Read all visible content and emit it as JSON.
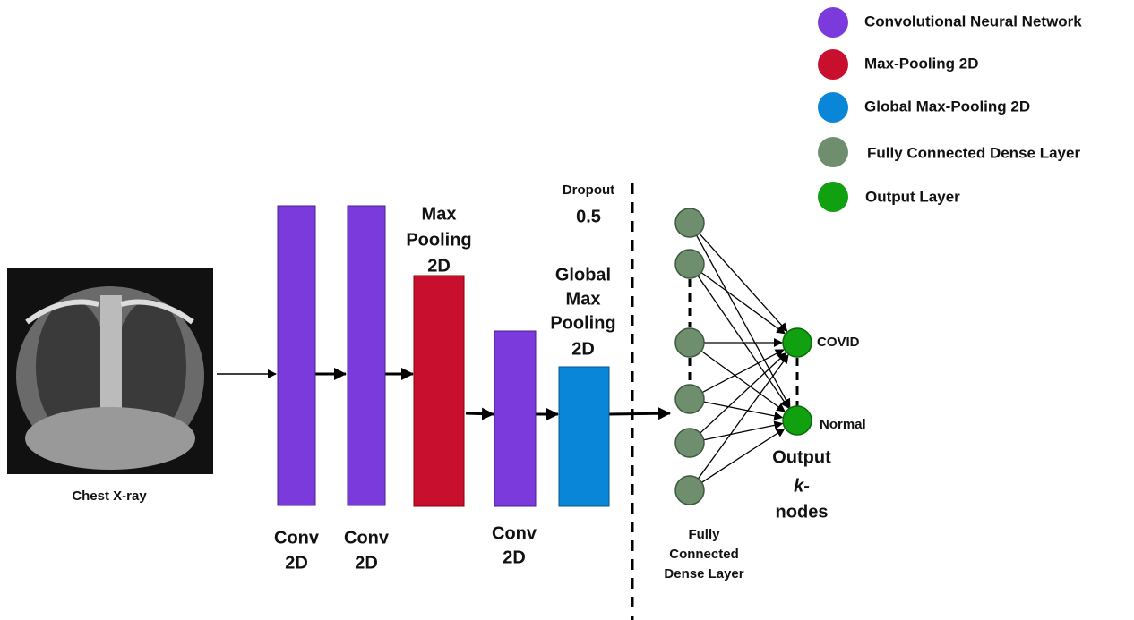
{
  "legend": [
    {
      "label": "Convolutional Neural Network"
    },
    {
      "label": "Max-Pooling 2D"
    },
    {
      "label": "Global Max-Pooling 2D"
    },
    {
      "label": "Fully Connected Dense Layer"
    },
    {
      "label": "Output Layer"
    }
  ],
  "input": {
    "label": "Chest X-ray"
  },
  "layers": [
    {
      "label": [
        "Conv",
        "2D"
      ]
    },
    {
      "label": [
        "Conv",
        "2D"
      ]
    },
    {
      "label": [
        "Max",
        "Pooling",
        "2D"
      ]
    },
    {
      "label": [
        "Conv",
        "2D"
      ]
    },
    {
      "label": [
        "Global",
        "Max",
        "Pooling",
        "2D"
      ]
    }
  ],
  "dropout": {
    "label": "Dropout",
    "rate": 0.5
  },
  "dense": {
    "label": [
      "Fully",
      "Connected",
      "Dense Layer"
    ]
  },
  "outputs": [
    {
      "label": "COVID"
    },
    {
      "label": "Normal"
    }
  ],
  "output_label": [
    "Output",
    "k-",
    "nodes"
  ]
}
